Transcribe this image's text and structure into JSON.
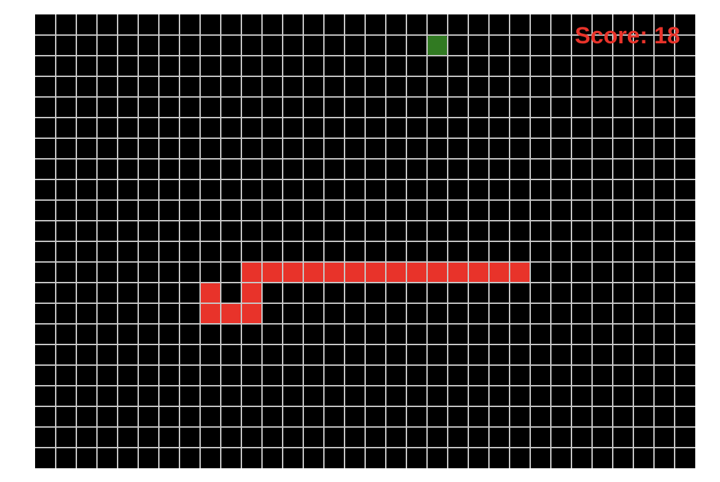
{
  "game": {
    "score_text": "Score: 18",
    "score_color": "#e8332a",
    "board_color": "#000000",
    "grid_color": "#c8c8c8",
    "snake_color": "#e8332a",
    "food_color": "#317a22",
    "grid": {
      "columns": 32,
      "rows": 22
    },
    "food": {
      "col": 19,
      "row": 1
    },
    "snake": [
      {
        "col": 8,
        "row": 13
      },
      {
        "col": 8,
        "row": 14
      },
      {
        "col": 9,
        "row": 14
      },
      {
        "col": 10,
        "row": 14
      },
      {
        "col": 10,
        "row": 13
      },
      {
        "col": 10,
        "row": 12
      },
      {
        "col": 11,
        "row": 12
      },
      {
        "col": 12,
        "row": 12
      },
      {
        "col": 13,
        "row": 12
      },
      {
        "col": 14,
        "row": 12
      },
      {
        "col": 15,
        "row": 12
      },
      {
        "col": 16,
        "row": 12
      },
      {
        "col": 17,
        "row": 12
      },
      {
        "col": 18,
        "row": 12
      },
      {
        "col": 19,
        "row": 12
      },
      {
        "col": 20,
        "row": 12
      },
      {
        "col": 21,
        "row": 12
      },
      {
        "col": 22,
        "row": 12
      },
      {
        "col": 23,
        "row": 12
      }
    ]
  }
}
